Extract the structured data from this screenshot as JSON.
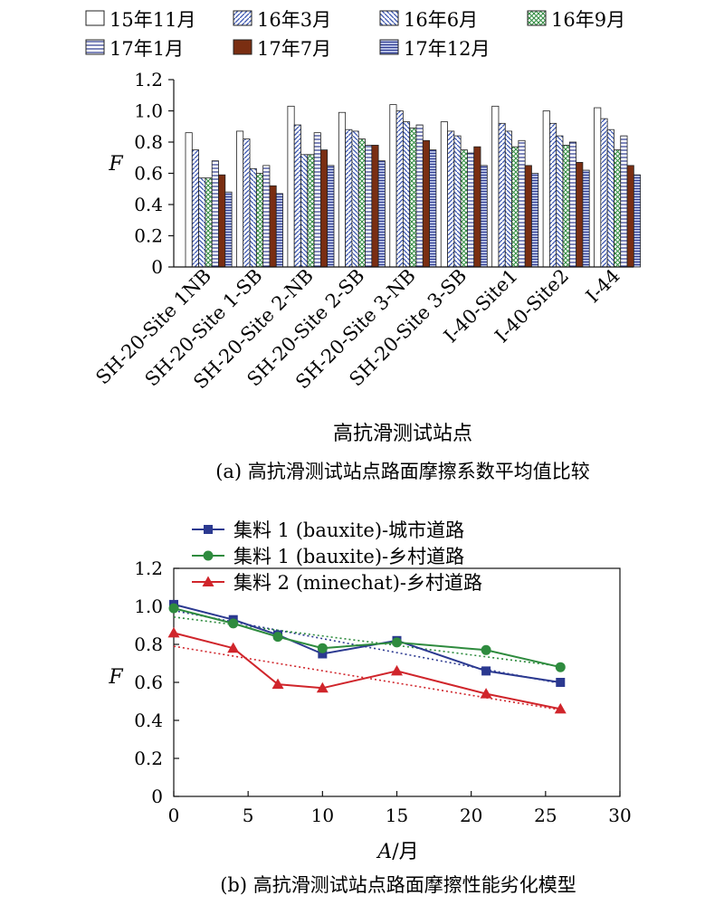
{
  "panel_a": {
    "caption": "(a) 高抗滑测试站点路面摩擦系数平均值比较",
    "chart_data": {
      "type": "bar",
      "title": "",
      "xlabel": "高抗滑测试站点",
      "ylabel": "F",
      "ylim": [
        0,
        1.2
      ],
      "yticks": [
        "0",
        "0.2",
        "0.4",
        "0.6",
        "0.8",
        "1.0",
        "1.2"
      ],
      "grid": false,
      "legend_position": "top",
      "categories": [
        "SH-20-Site 1NB",
        "SH-20-Site 1-SB",
        "SH-20-Site 2-NB",
        "SH-20-Site 2-SB",
        "SH-20-Site 3-NB",
        "SH-20-Site 3-SB",
        "I-40-Site1",
        "I-40-Site2",
        "I-44"
      ],
      "series": [
        {
          "name": "15年11月",
          "pattern": "white",
          "values": [
            0.86,
            0.87,
            1.03,
            0.99,
            1.04,
            0.93,
            1.03,
            1.0,
            1.02
          ]
        },
        {
          "name": "16年3月",
          "pattern": "diag-right",
          "values": [
            0.75,
            0.82,
            0.91,
            0.88,
            1.0,
            0.87,
            0.92,
            0.92,
            0.95
          ]
        },
        {
          "name": "16年6月",
          "pattern": "diag-left",
          "values": [
            0.57,
            0.63,
            0.72,
            0.87,
            0.93,
            0.84,
            0.87,
            0.84,
            0.88
          ]
        },
        {
          "name": "16年9月",
          "pattern": "cross",
          "values": [
            0.57,
            0.6,
            0.72,
            0.82,
            0.89,
            0.75,
            0.77,
            0.78,
            0.75
          ]
        },
        {
          "name": "17年1月",
          "pattern": "horiz-lines",
          "values": [
            0.68,
            0.65,
            0.86,
            0.78,
            0.91,
            0.73,
            0.81,
            0.8,
            0.84
          ]
        },
        {
          "name": "17年7月",
          "pattern": "brown",
          "values": [
            0.59,
            0.52,
            0.75,
            0.78,
            0.81,
            0.77,
            0.65,
            0.67,
            0.65
          ]
        },
        {
          "name": "17年12月",
          "pattern": "dense-lines",
          "values": [
            0.48,
            0.47,
            0.65,
            0.68,
            0.75,
            0.65,
            0.6,
            0.62,
            0.59
          ]
        }
      ]
    }
  },
  "panel_b": {
    "caption": "(b) 高抗滑测试站点路面摩擦性能劣化模型",
    "chart_data": {
      "type": "line",
      "title": "",
      "xlabel": "A/月",
      "ylabel": "F",
      "xlim": [
        0,
        30
      ],
      "ylim": [
        0,
        1.2
      ],
      "xticks": [
        "0",
        "5",
        "10",
        "15",
        "20",
        "25",
        "30"
      ],
      "yticks": [
        "0",
        "0.2",
        "0.4",
        "0.6",
        "0.8",
        "1.0",
        "1.2"
      ],
      "grid": false,
      "legend_position": "top-left",
      "trendlines": "dotted linear fit per series",
      "series": [
        {
          "name": "集料 1 (bauxite)-城市道路",
          "color": "#2b3990",
          "marker": "square",
          "x": [
            0,
            4,
            7,
            10,
            15,
            21,
            26
          ],
          "y": [
            1.01,
            0.93,
            0.85,
            0.75,
            0.82,
            0.66,
            0.6
          ]
        },
        {
          "name": "集料 1 (bauxite)-乡村道路",
          "color": "#2e8b3e",
          "marker": "circle",
          "x": [
            0,
            4,
            7,
            10,
            15,
            21,
            26
          ],
          "y": [
            0.99,
            0.91,
            0.84,
            0.78,
            0.81,
            0.77,
            0.68
          ]
        },
        {
          "name": "集料 2 (minechat)-乡村道路",
          "color": "#d0252b",
          "marker": "triangle",
          "x": [
            0,
            4,
            7,
            10,
            15,
            21,
            26
          ],
          "y": [
            0.86,
            0.78,
            0.59,
            0.57,
            0.66,
            0.54,
            0.46
          ]
        }
      ]
    }
  }
}
